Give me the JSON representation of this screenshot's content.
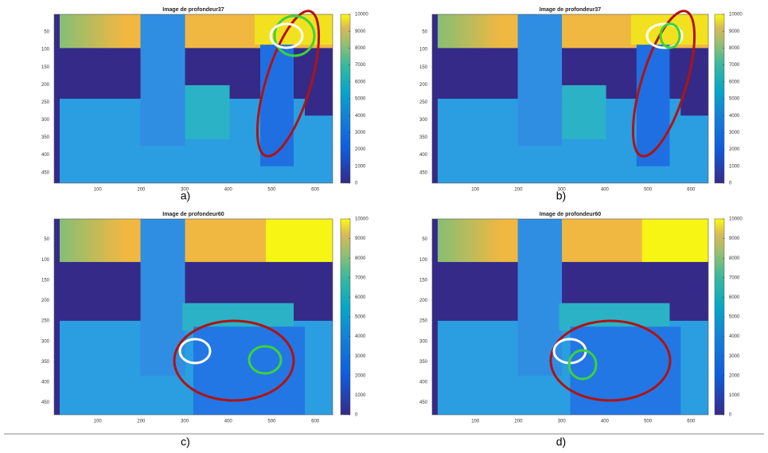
{
  "panels": [
    {
      "title": "Image de profondeur37",
      "xticks": [
        100,
        200,
        300,
        400,
        500,
        600
      ],
      "yticks": [
        50,
        100,
        150,
        200,
        250,
        300,
        350,
        400,
        450
      ],
      "colorbar_ticks": [
        0,
        1000,
        2000,
        3000,
        4000,
        5000,
        6000,
        7000,
        8000,
        9000,
        10000
      ],
      "caption": "a)"
    },
    {
      "title": "Image de profondeur37",
      "xticks": [
        100,
        200,
        300,
        400,
        500,
        600
      ],
      "yticks": [
        50,
        100,
        150,
        200,
        250,
        300,
        350,
        400,
        450
      ],
      "colorbar_ticks": [
        0,
        1000,
        2000,
        3000,
        4000,
        5000,
        6000,
        7000,
        8000,
        9000,
        10000
      ],
      "caption": "b)"
    },
    {
      "title": "Image de profondeur60",
      "xticks": [
        100,
        200,
        300,
        400,
        500,
        600
      ],
      "yticks": [
        50,
        100,
        150,
        200,
        250,
        300,
        350,
        400,
        450
      ],
      "colorbar_ticks": [
        0,
        1000,
        2000,
        3000,
        4000,
        5000,
        6000,
        7000,
        8000,
        9000,
        10000
      ],
      "caption": "c)"
    },
    {
      "title": "Image de profondeur60",
      "xticks": [
        100,
        200,
        300,
        400,
        500,
        600
      ],
      "yticks": [
        50,
        100,
        150,
        200,
        250,
        300,
        350,
        400,
        450
      ],
      "colorbar_ticks": [
        0,
        1000,
        2000,
        3000,
        4000,
        5000,
        6000,
        7000,
        8000,
        9000,
        10000
      ],
      "caption": "d)"
    }
  ]
}
